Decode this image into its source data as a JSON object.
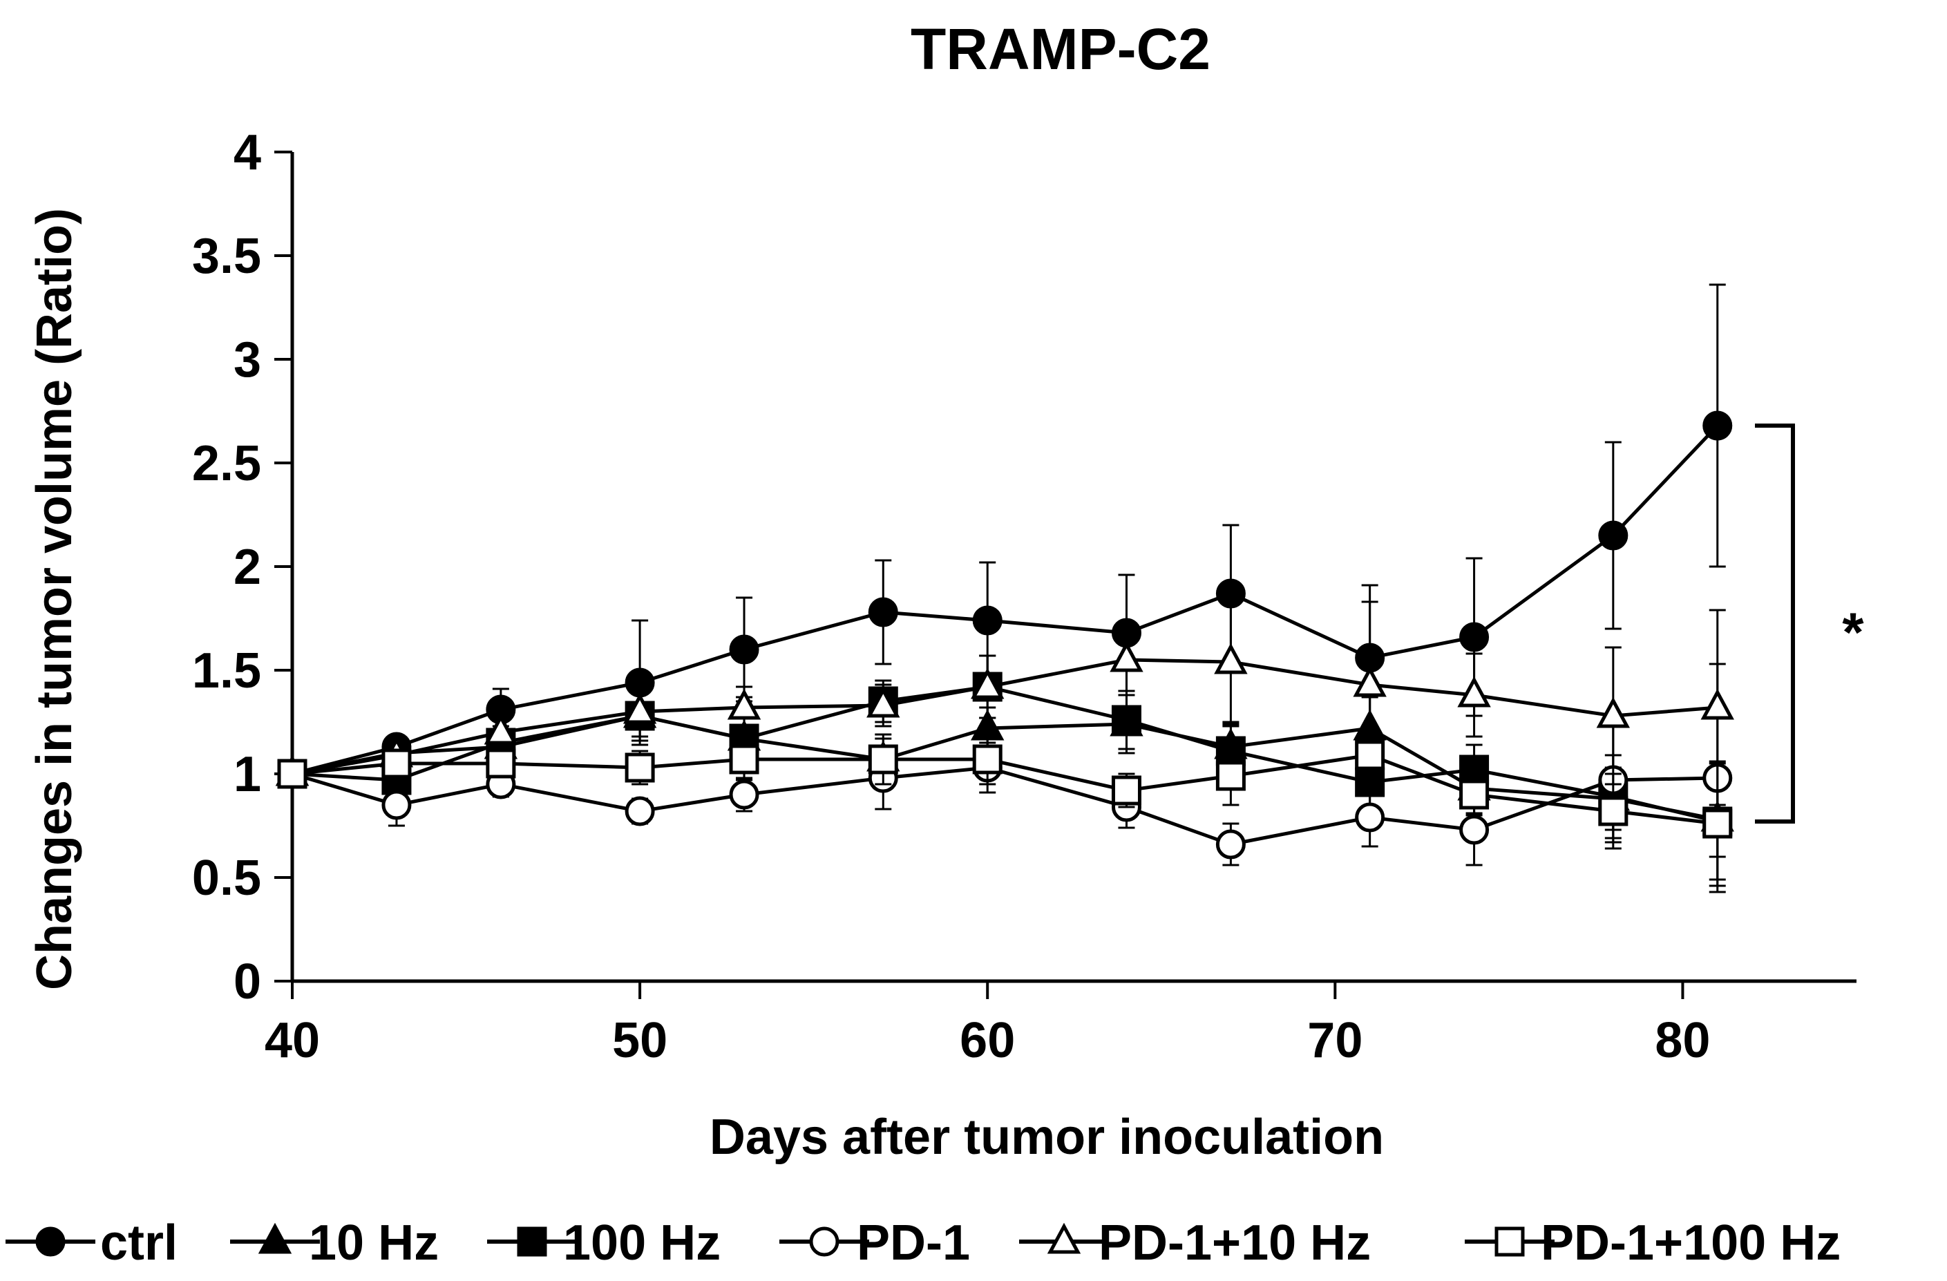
{
  "chart_data": {
    "type": "line",
    "title": "TRAMP-C2",
    "xlabel": "Days after tumor inoculation",
    "ylabel": "Changes in tumor volume (Ratio)",
    "xlim": [
      40,
      85
    ],
    "ylim": [
      0,
      4
    ],
    "xticks": [
      "40",
      "50",
      "60",
      "70",
      "80"
    ],
    "yticks": [
      "0",
      "0.5",
      "1",
      "1.5",
      "2",
      "2.5",
      "3",
      "3.5",
      "4"
    ],
    "x": [
      40,
      43,
      46,
      50,
      53,
      57,
      60,
      64,
      67,
      71,
      74,
      78,
      81
    ],
    "series": [
      {
        "name": "ctrl",
        "marker": "circle",
        "filled": true,
        "values": [
          1.0,
          1.13,
          1.31,
          1.44,
          1.6,
          1.78,
          1.74,
          1.68,
          1.87,
          1.56,
          1.66,
          2.15,
          2.68
        ],
        "errors": [
          0,
          0.05,
          0.1,
          0.3,
          0.25,
          0.25,
          0.28,
          0.28,
          0.33,
          0.35,
          0.38,
          0.45,
          0.68
        ]
      },
      {
        "name": "10 Hz",
        "marker": "triangle",
        "filled": true,
        "values": [
          1.0,
          1.1,
          1.13,
          1.28,
          1.17,
          1.07,
          1.22,
          1.24,
          1.13,
          1.22,
          0.93,
          0.88,
          0.78
        ],
        "errors": [
          0,
          0.05,
          0.06,
          0.12,
          0.12,
          0.1,
          0.1,
          0.14,
          0.1,
          0.15,
          0.12,
          0.15,
          0.18
        ]
      },
      {
        "name": "100 Hz",
        "marker": "square",
        "filled": true,
        "values": [
          1.0,
          0.97,
          1.15,
          1.28,
          1.17,
          1.35,
          1.42,
          1.26,
          1.11,
          0.96,
          1.02,
          0.89,
          0.77
        ],
        "errors": [
          0,
          0.06,
          0.08,
          0.12,
          0.2,
          0.1,
          0.15,
          0.14,
          0.14,
          0.12,
          0.12,
          0.2,
          0.28
        ]
      },
      {
        "name": "PD-1",
        "marker": "circle",
        "filled": false,
        "values": [
          1.0,
          0.85,
          0.95,
          0.82,
          0.9,
          0.98,
          1.03,
          0.84,
          0.66,
          0.79,
          0.73,
          0.97,
          0.98
        ],
        "errors": [
          0,
          0.1,
          0.06,
          0.06,
          0.08,
          0.15,
          0.12,
          0.1,
          0.1,
          0.14,
          0.17,
          0.3,
          0.55
        ]
      },
      {
        "name": "PD-1+10 Hz",
        "marker": "triangle",
        "filled": false,
        "values": [
          1.0,
          1.09,
          1.2,
          1.3,
          1.32,
          1.33,
          1.42,
          1.55,
          1.54,
          1.43,
          1.38,
          1.28,
          1.32
        ],
        "errors": [
          0,
          0.05,
          0.08,
          0.12,
          0.1,
          0.1,
          0.15,
          0.15,
          0.3,
          0.4,
          0.2,
          0.33,
          0.47
        ]
      },
      {
        "name": "PD-1+100 Hz",
        "marker": "square",
        "filled": false,
        "values": [
          1.0,
          1.05,
          1.05,
          1.03,
          1.07,
          1.07,
          1.07,
          0.92,
          0.99,
          1.09,
          0.9,
          0.82,
          0.76
        ],
        "errors": [
          0,
          0.05,
          0.06,
          0.08,
          0.1,
          0.12,
          0.12,
          0.08,
          0.14,
          0.14,
          0.1,
          0.18,
          0.3
        ]
      }
    ],
    "annotation": {
      "text": "*",
      "bracket_from_y": 2.68,
      "bracket_to_y": 0.77
    },
    "legend_position": "bottom",
    "grid": false
  }
}
